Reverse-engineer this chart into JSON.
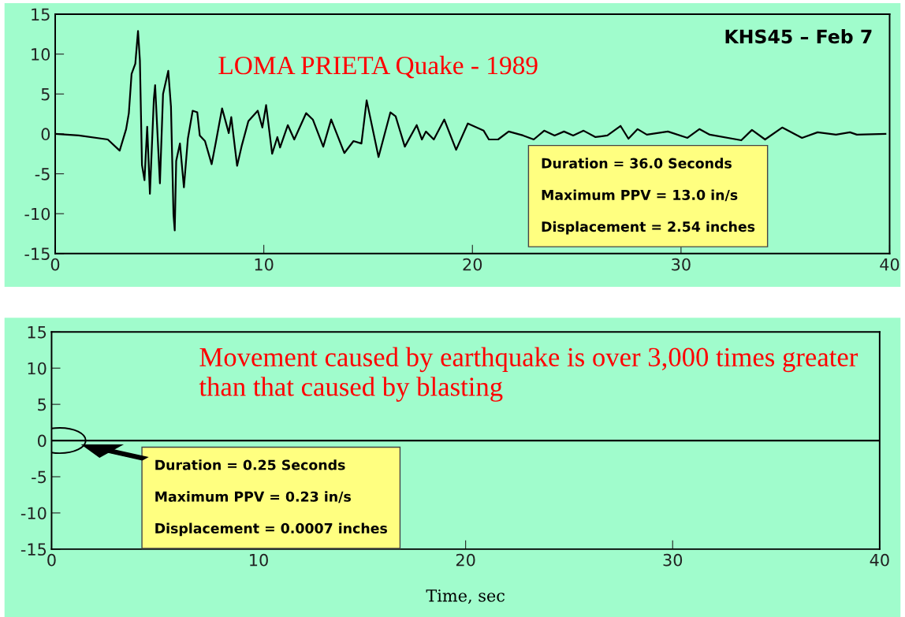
{
  "chart_data": [
    {
      "type": "line",
      "title": "KHS45 – Feb 7",
      "x": [
        0,
        1.13,
        2.52,
        3.09,
        3.4,
        3.53,
        3.66,
        3.84,
        3.97,
        4.06,
        4.16,
        4.28,
        4.41,
        4.54,
        4.73,
        4.79,
        5.02,
        5.17,
        5.42,
        5.55,
        5.67,
        5.73,
        5.8,
        5.98,
        6.17,
        6.36,
        6.59,
        6.81,
        6.93,
        7.18,
        7.5,
        7.69,
        8.0,
        8.32,
        8.44,
        8.72,
        8.95,
        9.26,
        9.71,
        9.93,
        10.11,
        10.4,
        10.65,
        10.78,
        11.15,
        11.46,
        12.03,
        12.35,
        12.85,
        13.23,
        13.86,
        14.3,
        14.68,
        14.93,
        15.5,
        16.07,
        16.32,
        16.76,
        17.33,
        17.58,
        17.77,
        18.15,
        18.65,
        19.22,
        19.78,
        20.54,
        20.79,
        21.23,
        21.74,
        22.43,
        22.94,
        23.44,
        23.94,
        24.39,
        24.83,
        25.33,
        25.9,
        26.47,
        27.1,
        27.48,
        27.92,
        28.36,
        29.37,
        30.31,
        30.88,
        31.38,
        32.89,
        33.4,
        34.03,
        34.85,
        35.8,
        36.55,
        37.43,
        38.1,
        38.43,
        39.8
      ],
      "series": [
        {
          "color": "#000000",
          "values": [
            0,
            -0.2,
            -0.7,
            -2.1,
            0.6,
            2.6,
            7.5,
            8.8,
            12.9,
            9.2,
            -3.9,
            -5.8,
            0.9,
            -7.5,
            4.4,
            6.1,
            -6.2,
            5.0,
            7.9,
            3.4,
            -10.1,
            -12.1,
            -3.4,
            -1.2,
            -6.7,
            -0.6,
            2.9,
            2.7,
            -0.2,
            -0.9,
            -3.8,
            -1.2,
            3.2,
            0.1,
            2.1,
            -4.0,
            -1.4,
            1.6,
            2.9,
            0.8,
            3.6,
            -2.5,
            -0.4,
            -1.7,
            1.1,
            -0.7,
            2.6,
            1.8,
            -1.6,
            1.8,
            -2.4,
            -0.9,
            -1.2,
            4.2,
            -2.9,
            2.7,
            2.2,
            -1.6,
            1.1,
            -0.7,
            0.3,
            -0.7,
            1.8,
            -2.0,
            1.3,
            0.4,
            -0.7,
            -0.7,
            0.3,
            -0.2,
            -0.7,
            0.4,
            -0.2,
            0.3,
            -0.2,
            0.4,
            -0.4,
            -0.2,
            1.0,
            -0.6,
            0.6,
            -0.1,
            0.3,
            -0.5,
            0.6,
            -0.1,
            -0.8,
            0.5,
            -0.7,
            0.8,
            -0.5,
            0.2,
            -0.1,
            0.2,
            -0.1,
            0.0
          ]
        }
      ],
      "xlim": [
        0,
        40
      ],
      "xticks": [
        0,
        10,
        20,
        30,
        40
      ],
      "ylim": [
        -15,
        15
      ],
      "yticks": [
        -15,
        -10,
        -5,
        0,
        5,
        10,
        15
      ],
      "grid": false,
      "marker": "none",
      "line_style": "solid",
      "annotations": [
        "LOMA PRIETA Quake - 1989",
        "Duration = 36.0 Seconds",
        "Maximum PPV = 13.0 in/s",
        "Displacement = 2.54 inches"
      ]
    },
    {
      "type": "line",
      "xlabel": "Time, sec",
      "x": [
        0,
        40
      ],
      "series": [
        {
          "color": "#000000",
          "values": [
            0,
            0
          ]
        }
      ],
      "xlim": [
        0,
        40
      ],
      "xticks": [
        0,
        10,
        20,
        30,
        40
      ],
      "ylim": [
        -15,
        15
      ],
      "yticks": [
        -15,
        -10,
        -5,
        0,
        5,
        10,
        15
      ],
      "grid": false,
      "marker": "none",
      "line_style": "solid",
      "annotations": [
        "Movement caused by earthquake is over 3,000 times greater than that caused by blasting",
        "Duration = 0.25 Seconds",
        "Maximum PPV = 0.23 in/s",
        "Displacement = 0.0007 inches"
      ]
    }
  ]
}
